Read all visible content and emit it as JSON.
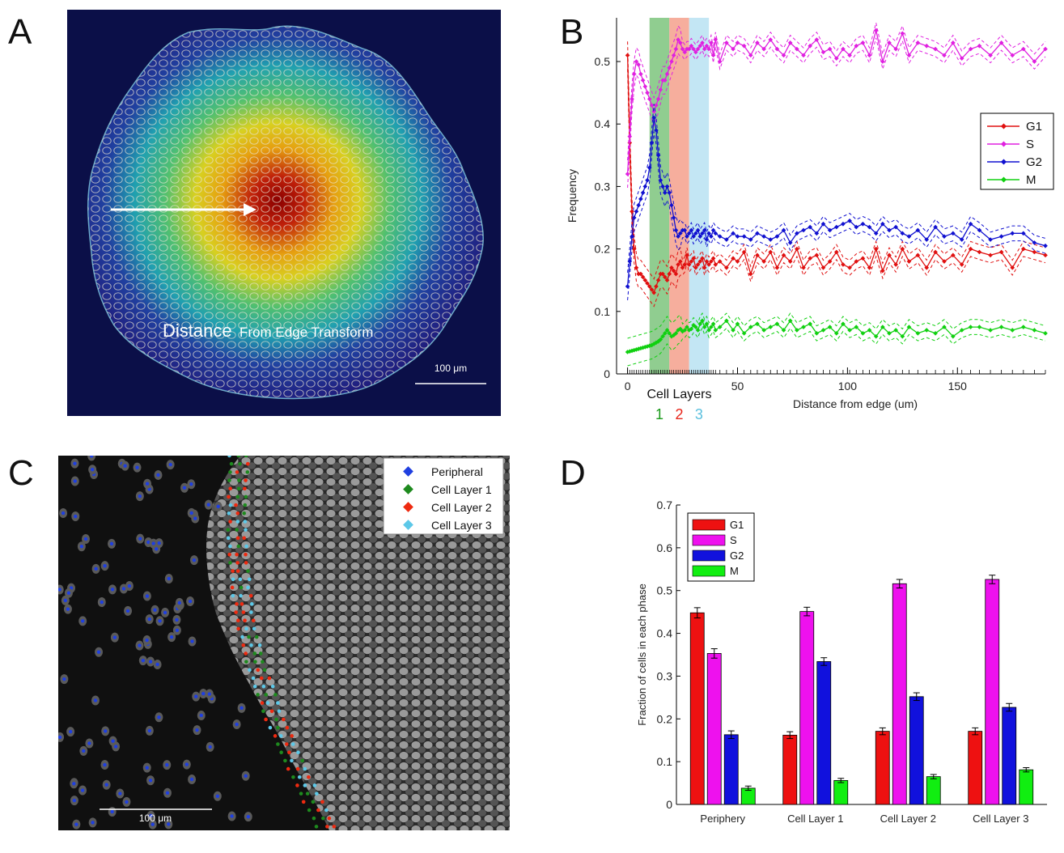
{
  "panels": {
    "a": {
      "letter": "A",
      "label_big": "Distance",
      "label_small": "From Edge Transform",
      "scalebar": "100 μm"
    },
    "b": {
      "letter": "B",
      "cell_layers_label": "Cell Layers",
      "layer_labels": [
        "1",
        "2",
        "3"
      ],
      "layer_colors": [
        "#1a9a1a",
        "#e8251a",
        "#5bc0de"
      ]
    },
    "c": {
      "letter": "C",
      "scalebar": "100 μm",
      "legend": [
        {
          "label": "Peripheral",
          "color": "#1f3fe0"
        },
        {
          "label": "Cell Layer 1",
          "color": "#1e8a1e"
        },
        {
          "label": "Cell Layer 2",
          "color": "#ee2a10"
        },
        {
          "label": "Cell Layer 3",
          "color": "#5cc8e8"
        }
      ]
    },
    "d": {
      "letter": "D"
    }
  },
  "chart_data": [
    {
      "type": "line",
      "xlabel": "Distance from edge (um)",
      "ylabel": "Frequency",
      "xlim": [
        -5,
        190
      ],
      "ylim": [
        0,
        0.57
      ],
      "xticks": [
        0,
        50,
        100,
        150
      ],
      "yticks": [
        0,
        0.1,
        0.2,
        0.3,
        0.4,
        0.5
      ],
      "legend_position": "right",
      "shaded_bands": [
        {
          "name": "1",
          "x": [
            10,
            19
          ],
          "color": "#7cc47c"
        },
        {
          "name": "2",
          "x": [
            19,
            28
          ],
          "color": "#f5a08c"
        },
        {
          "name": "3",
          "x": [
            28,
            37
          ],
          "color": "#b8e2f2"
        }
      ],
      "x": [
        0,
        1,
        2,
        3,
        4,
        5,
        6,
        7,
        8,
        9,
        10,
        11,
        12,
        13,
        14,
        15,
        16,
        17,
        18,
        19,
        20,
        21,
        22,
        23,
        24,
        25,
        26,
        27,
        28,
        29,
        30,
        31,
        32,
        33,
        34,
        35,
        36,
        37,
        38,
        39,
        40,
        42,
        45,
        48,
        50,
        53,
        56,
        59,
        62,
        65,
        68,
        71,
        74,
        77,
        80,
        83,
        86,
        89,
        92,
        95,
        98,
        101,
        104,
        107,
        110,
        113,
        116,
        119,
        122,
        125,
        128,
        132,
        136,
        140,
        144,
        148,
        152,
        156,
        160,
        165,
        170,
        175,
        180,
        185,
        190
      ],
      "series": [
        {
          "name": "G1",
          "color": "#e01010",
          "values": [
            0.51,
            0.37,
            0.26,
            0.2,
            0.17,
            0.16,
            0.16,
            0.155,
            0.15,
            0.145,
            0.14,
            0.135,
            0.13,
            0.14,
            0.15,
            0.16,
            0.16,
            0.155,
            0.15,
            0.16,
            0.17,
            0.165,
            0.16,
            0.175,
            0.18,
            0.17,
            0.175,
            0.19,
            0.175,
            0.18,
            0.185,
            0.17,
            0.175,
            0.18,
            0.185,
            0.17,
            0.18,
            0.175,
            0.18,
            0.185,
            0.175,
            0.18,
            0.17,
            0.185,
            0.18,
            0.195,
            0.16,
            0.19,
            0.18,
            0.195,
            0.17,
            0.19,
            0.18,
            0.2,
            0.17,
            0.185,
            0.19,
            0.17,
            0.18,
            0.195,
            0.175,
            0.17,
            0.18,
            0.185,
            0.17,
            0.2,
            0.165,
            0.19,
            0.175,
            0.2,
            0.18,
            0.19,
            0.17,
            0.195,
            0.18,
            0.19,
            0.175,
            0.2,
            0.195,
            0.19,
            0.195,
            0.17,
            0.2,
            0.195,
            0.19
          ]
        },
        {
          "name": "S",
          "color": "#e020e0",
          "values": [
            0.32,
            0.38,
            0.44,
            0.48,
            0.5,
            0.495,
            0.48,
            0.47,
            0.46,
            0.45,
            0.44,
            0.43,
            0.42,
            0.43,
            0.44,
            0.455,
            0.47,
            0.47,
            0.48,
            0.49,
            0.5,
            0.51,
            0.52,
            0.535,
            0.53,
            0.52,
            0.515,
            0.52,
            0.52,
            0.525,
            0.52,
            0.515,
            0.52,
            0.525,
            0.53,
            0.52,
            0.525,
            0.52,
            0.53,
            0.51,
            0.535,
            0.5,
            0.53,
            0.52,
            0.53,
            0.525,
            0.51,
            0.53,
            0.52,
            0.535,
            0.52,
            0.51,
            0.53,
            0.52,
            0.51,
            0.525,
            0.535,
            0.515,
            0.52,
            0.505,
            0.52,
            0.51,
            0.525,
            0.53,
            0.51,
            0.55,
            0.5,
            0.53,
            0.52,
            0.545,
            0.51,
            0.53,
            0.525,
            0.52,
            0.51,
            0.53,
            0.505,
            0.52,
            0.525,
            0.51,
            0.53,
            0.51,
            0.52,
            0.5,
            0.52
          ]
        },
        {
          "name": "G2",
          "color": "#1010d0",
          "values": [
            0.14,
            0.18,
            0.22,
            0.25,
            0.26,
            0.27,
            0.28,
            0.29,
            0.3,
            0.31,
            0.33,
            0.37,
            0.41,
            0.39,
            0.35,
            0.31,
            0.3,
            0.29,
            0.3,
            0.29,
            0.27,
            0.25,
            0.23,
            0.22,
            0.225,
            0.23,
            0.23,
            0.22,
            0.225,
            0.23,
            0.22,
            0.225,
            0.23,
            0.22,
            0.225,
            0.23,
            0.215,
            0.225,
            0.22,
            0.23,
            0.225,
            0.22,
            0.215,
            0.225,
            0.22,
            0.22,
            0.215,
            0.225,
            0.22,
            0.215,
            0.22,
            0.23,
            0.21,
            0.225,
            0.23,
            0.235,
            0.225,
            0.24,
            0.23,
            0.235,
            0.24,
            0.245,
            0.235,
            0.24,
            0.235,
            0.225,
            0.24,
            0.23,
            0.235,
            0.225,
            0.22,
            0.23,
            0.215,
            0.235,
            0.22,
            0.225,
            0.215,
            0.24,
            0.23,
            0.215,
            0.22,
            0.225,
            0.225,
            0.21,
            0.205
          ]
        },
        {
          "name": "M",
          "color": "#10d010",
          "values": [
            0.035,
            0.036,
            0.037,
            0.038,
            0.039,
            0.04,
            0.041,
            0.042,
            0.043,
            0.044,
            0.045,
            0.046,
            0.048,
            0.05,
            0.052,
            0.055,
            0.06,
            0.065,
            0.07,
            0.065,
            0.06,
            0.062,
            0.065,
            0.07,
            0.072,
            0.068,
            0.07,
            0.075,
            0.07,
            0.072,
            0.078,
            0.075,
            0.07,
            0.08,
            0.085,
            0.075,
            0.08,
            0.07,
            0.075,
            0.08,
            0.07,
            0.075,
            0.085,
            0.07,
            0.08,
            0.065,
            0.075,
            0.08,
            0.07,
            0.075,
            0.08,
            0.07,
            0.085,
            0.07,
            0.075,
            0.08,
            0.065,
            0.07,
            0.075,
            0.065,
            0.08,
            0.07,
            0.075,
            0.065,
            0.07,
            0.06,
            0.075,
            0.065,
            0.07,
            0.06,
            0.075,
            0.065,
            0.07,
            0.065,
            0.075,
            0.06,
            0.07,
            0.075,
            0.075,
            0.07,
            0.075,
            0.07,
            0.075,
            0.07,
            0.065
          ]
        }
      ]
    },
    {
      "type": "bar",
      "ylabel": "Fraction of cells in each phase",
      "ylim": [
        0,
        0.7
      ],
      "yticks": [
        0,
        0.1,
        0.2,
        0.3,
        0.4,
        0.5,
        0.6,
        0.7
      ],
      "legend_position": "top-left",
      "categories": [
        "Periphery",
        "Cell Layer 1",
        "Cell Layer 2",
        "Cell Layer 3"
      ],
      "series": [
        {
          "name": "G1",
          "color": "#ee1111",
          "values": [
            0.448,
            0.162,
            0.171,
            0.171
          ],
          "errors": [
            0.012,
            0.008,
            0.008,
            0.008
          ]
        },
        {
          "name": "S",
          "color": "#ee11ee",
          "values": [
            0.353,
            0.451,
            0.516,
            0.526
          ],
          "errors": [
            0.011,
            0.01,
            0.01,
            0.01
          ]
        },
        {
          "name": "G2",
          "color": "#1111dd",
          "values": [
            0.163,
            0.334,
            0.252,
            0.227
          ],
          "errors": [
            0.009,
            0.009,
            0.009,
            0.009
          ]
        },
        {
          "name": "M",
          "color": "#11ee11",
          "values": [
            0.038,
            0.056,
            0.065,
            0.081
          ],
          "errors": [
            0.005,
            0.005,
            0.005,
            0.005
          ]
        }
      ]
    }
  ]
}
